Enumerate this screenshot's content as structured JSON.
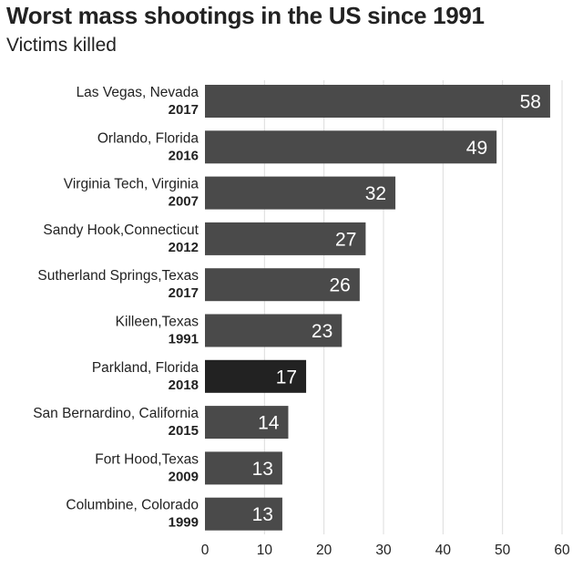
{
  "chart_data": {
    "type": "bar",
    "orientation": "horizontal",
    "title": "Worst mass shootings in the US since 1991",
    "subtitle": "Victims killed",
    "xlabel": "",
    "ylabel": "",
    "xlim": [
      0,
      60
    ],
    "ticks": [
      "0",
      "10",
      "20",
      "30",
      "40",
      "50",
      "60"
    ],
    "grid": true,
    "bar_color": "#4a4a4a",
    "highlight_color": "#222222",
    "categories": [
      {
        "place": "Las Vegas, Nevada",
        "year": "2017"
      },
      {
        "place": "Orlando, Florida",
        "year": "2016"
      },
      {
        "place": "Virginia Tech, Virginia",
        "year": "2007"
      },
      {
        "place": "Sandy Hook,Connecticut",
        "year": "2012"
      },
      {
        "place": "Sutherland Springs,Texas",
        "year": "2017"
      },
      {
        "place": "Killeen,Texas",
        "year": "1991"
      },
      {
        "place": "Parkland, Florida",
        "year": "2018"
      },
      {
        "place": "San Bernardino, California",
        "year": "2015"
      },
      {
        "place": "Fort Hood,Texas",
        "year": "2009"
      },
      {
        "place": "Columbine, Colorado",
        "year": "1999"
      }
    ],
    "values": [
      58,
      49,
      32,
      27,
      26,
      23,
      17,
      14,
      13,
      13
    ],
    "highlighted": [
      "Parkland, Florida"
    ]
  }
}
